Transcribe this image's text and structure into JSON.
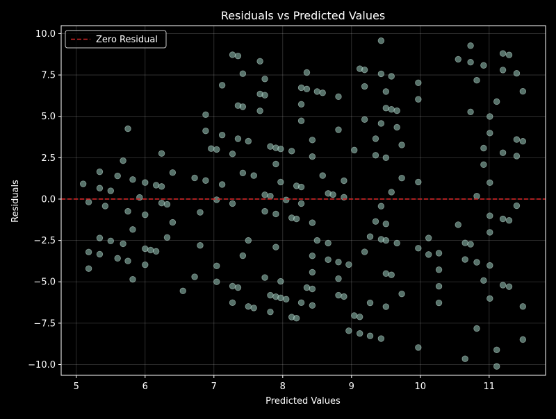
{
  "chart_data": {
    "type": "scatter",
    "title": "Residuals vs Predicted Values",
    "xlabel": "Predicted Values",
    "ylabel": "Residuals",
    "xlim": [
      4.78,
      11.82
    ],
    "ylim": [
      -10.65,
      10.48
    ],
    "xticks": [
      5,
      6,
      7,
      8,
      9,
      10,
      11
    ],
    "yticks": [
      -10.0,
      -7.5,
      -5.0,
      -2.5,
      0.0,
      2.5,
      5.0,
      7.5,
      10.0
    ],
    "ytick_labels": [
      "−10.0",
      "−7.5",
      "−5.0",
      "−2.5",
      "0.0",
      "2.5",
      "5.0",
      "7.5",
      "10.0"
    ],
    "grid": true,
    "legend": {
      "placement": "top-left",
      "entries": [
        "Zero Residual"
      ]
    },
    "reference_line": {
      "y": 0,
      "style": "dashed",
      "color": "#d62728",
      "label": "Zero Residual"
    },
    "point_color": "#8fbcaf",
    "points": [
      [
        5.1,
        0.92
      ],
      [
        5.18,
        -0.18
      ],
      [
        5.18,
        -3.2
      ],
      [
        5.18,
        -4.2
      ],
      [
        5.34,
        1.65
      ],
      [
        5.34,
        0.66
      ],
      [
        5.34,
        -2.35
      ],
      [
        5.34,
        -3.33
      ],
      [
        5.42,
        -0.42
      ],
      [
        5.5,
        0.5
      ],
      [
        5.5,
        -2.53
      ],
      [
        5.6,
        1.4
      ],
      [
        5.6,
        -3.58
      ],
      [
        5.68,
        2.32
      ],
      [
        5.68,
        -2.7
      ],
      [
        5.75,
        4.25
      ],
      [
        5.75,
        -0.74
      ],
      [
        5.75,
        -3.74
      ],
      [
        5.82,
        1.18
      ],
      [
        5.82,
        -1.84
      ],
      [
        5.82,
        -4.85
      ],
      [
        5.92,
        0.1
      ],
      [
        6.0,
        1.0
      ],
      [
        6.0,
        -0.95
      ],
      [
        6.0,
        -3.0
      ],
      [
        6.0,
        -3.97
      ],
      [
        6.08,
        -3.08
      ],
      [
        6.16,
        0.84
      ],
      [
        6.16,
        -3.16
      ],
      [
        6.24,
        2.76
      ],
      [
        6.24,
        0.76
      ],
      [
        6.24,
        -0.24
      ],
      [
        6.32,
        -0.32
      ],
      [
        6.32,
        -2.32
      ],
      [
        6.4,
        1.6
      ],
      [
        6.4,
        -1.41
      ],
      [
        6.55,
        -5.55
      ],
      [
        6.72,
        1.28
      ],
      [
        6.72,
        -4.7
      ],
      [
        6.8,
        -0.8
      ],
      [
        6.8,
        -2.8
      ],
      [
        6.88,
        5.1
      ],
      [
        6.88,
        4.12
      ],
      [
        6.88,
        1.12
      ],
      [
        6.96,
        3.05
      ],
      [
        7.04,
        3.0
      ],
      [
        7.04,
        -0.04
      ],
      [
        7.04,
        -4.04
      ],
      [
        7.04,
        -5.0
      ],
      [
        7.12,
        6.88
      ],
      [
        7.12,
        3.87
      ],
      [
        7.12,
        0.88
      ],
      [
        7.27,
        8.72
      ],
      [
        7.27,
        2.73
      ],
      [
        7.27,
        -0.27
      ],
      [
        7.27,
        -5.26
      ],
      [
        7.27,
        -6.26
      ],
      [
        7.35,
        8.65
      ],
      [
        7.35,
        5.65
      ],
      [
        7.35,
        3.65
      ],
      [
        7.35,
        -5.35
      ],
      [
        7.42,
        7.58
      ],
      [
        7.42,
        5.58
      ],
      [
        7.42,
        1.58
      ],
      [
        7.42,
        -3.42
      ],
      [
        7.5,
        3.5
      ],
      [
        7.5,
        -2.5
      ],
      [
        7.5,
        -6.49
      ],
      [
        7.58,
        1.42
      ],
      [
        7.58,
        -6.58
      ],
      [
        7.67,
        8.33
      ],
      [
        7.67,
        6.35
      ],
      [
        7.67,
        5.33
      ],
      [
        7.74,
        7.26
      ],
      [
        7.74,
        6.28
      ],
      [
        7.74,
        0.26
      ],
      [
        7.74,
        -0.74
      ],
      [
        7.74,
        -4.74
      ],
      [
        7.82,
        3.18
      ],
      [
        7.82,
        0.18
      ],
      [
        7.82,
        -5.81
      ],
      [
        7.82,
        -6.82
      ],
      [
        7.9,
        3.1
      ],
      [
        7.9,
        2.12
      ],
      [
        7.9,
        -0.9
      ],
      [
        7.9,
        -2.9
      ],
      [
        7.9,
        -5.9
      ],
      [
        7.97,
        3.03
      ],
      [
        7.97,
        1.03
      ],
      [
        7.97,
        -4.97
      ],
      [
        7.97,
        -5.97
      ],
      [
        8.05,
        -0.05
      ],
      [
        8.05,
        -6.05
      ],
      [
        8.13,
        2.9
      ],
      [
        8.13,
        -1.13
      ],
      [
        8.13,
        -7.13
      ],
      [
        8.2,
        0.8
      ],
      [
        8.2,
        -1.2
      ],
      [
        8.2,
        -7.2
      ],
      [
        8.27,
        6.73
      ],
      [
        8.27,
        5.73
      ],
      [
        8.27,
        4.73
      ],
      [
        8.27,
        0.73
      ],
      [
        8.27,
        -0.27
      ],
      [
        8.27,
        -6.26
      ],
      [
        8.35,
        7.65
      ],
      [
        8.35,
        6.65
      ],
      [
        8.35,
        -5.35
      ],
      [
        8.43,
        3.57
      ],
      [
        8.43,
        2.57
      ],
      [
        8.43,
        -1.43
      ],
      [
        8.43,
        -3.43
      ],
      [
        8.43,
        -4.42
      ],
      [
        8.43,
        -5.43
      ],
      [
        8.43,
        -6.43
      ],
      [
        8.5,
        6.5
      ],
      [
        8.5,
        -2.5
      ],
      [
        8.58,
        6.42
      ],
      [
        8.58,
        1.42
      ],
      [
        8.66,
        0.34
      ],
      [
        8.66,
        -2.66
      ],
      [
        8.66,
        -3.66
      ],
      [
        8.73,
        0.27
      ],
      [
        8.81,
        6.19
      ],
      [
        8.81,
        4.19
      ],
      [
        8.81,
        -3.81
      ],
      [
        8.81,
        -4.81
      ],
      [
        8.81,
        -5.81
      ],
      [
        8.89,
        1.11
      ],
      [
        8.89,
        0.11
      ],
      [
        8.89,
        -5.89
      ],
      [
        8.96,
        -3.96
      ],
      [
        8.96,
        -7.96
      ],
      [
        9.04,
        2.96
      ],
      [
        9.04,
        -7.04
      ],
      [
        9.12,
        7.88
      ],
      [
        9.12,
        -7.12
      ],
      [
        9.12,
        -8.12
      ],
      [
        9.19,
        7.81
      ],
      [
        9.19,
        6.81
      ],
      [
        9.19,
        4.81
      ],
      [
        9.19,
        -3.19
      ],
      [
        9.27,
        -2.27
      ],
      [
        9.27,
        -6.27
      ],
      [
        9.27,
        -8.27
      ],
      [
        9.35,
        3.65
      ],
      [
        9.35,
        2.65
      ],
      [
        9.35,
        -1.35
      ],
      [
        9.43,
        9.57
      ],
      [
        9.43,
        7.57
      ],
      [
        9.43,
        4.57
      ],
      [
        9.43,
        -0.43
      ],
      [
        9.43,
        -2.43
      ],
      [
        9.43,
        -8.43
      ],
      [
        9.5,
        6.5
      ],
      [
        9.5,
        5.5
      ],
      [
        9.5,
        2.5
      ],
      [
        9.5,
        -1.5
      ],
      [
        9.5,
        -2.5
      ],
      [
        9.5,
        -4.5
      ],
      [
        9.5,
        -6.5
      ],
      [
        9.58,
        7.42
      ],
      [
        9.58,
        5.42
      ],
      [
        9.58,
        0.42
      ],
      [
        9.58,
        -4.58
      ],
      [
        9.66,
        5.34
      ],
      [
        9.66,
        4.34
      ],
      [
        9.66,
        -2.66
      ],
      [
        9.73,
        3.27
      ],
      [
        9.73,
        1.27
      ],
      [
        9.73,
        -5.73
      ],
      [
        9.97,
        7.03
      ],
      [
        9.97,
        6.03
      ],
      [
        9.97,
        1.03
      ],
      [
        9.97,
        -2.97
      ],
      [
        9.97,
        -8.97
      ],
      [
        10.12,
        -2.35
      ],
      [
        10.12,
        -3.35
      ],
      [
        10.27,
        -3.27
      ],
      [
        10.27,
        -4.27
      ],
      [
        10.27,
        -5.27
      ],
      [
        10.27,
        -6.27
      ],
      [
        10.55,
        8.45
      ],
      [
        10.55,
        -1.55
      ],
      [
        10.65,
        -2.65
      ],
      [
        10.65,
        -3.65
      ],
      [
        10.65,
        -9.65
      ],
      [
        10.73,
        9.27
      ],
      [
        10.73,
        8.27
      ],
      [
        10.73,
        5.27
      ],
      [
        10.73,
        -2.73
      ],
      [
        10.82,
        7.18
      ],
      [
        10.82,
        0.18
      ],
      [
        10.82,
        -3.82
      ],
      [
        10.82,
        -7.82
      ],
      [
        10.92,
        8.08
      ],
      [
        10.92,
        3.08
      ],
      [
        10.92,
        2.08
      ],
      [
        10.92,
        -4.92
      ],
      [
        11.01,
        4.99
      ],
      [
        11.01,
        3.99
      ],
      [
        11.01,
        0.99
      ],
      [
        11.01,
        -1.01
      ],
      [
        11.01,
        -2.01
      ],
      [
        11.01,
        -4.01
      ],
      [
        11.01,
        -6.01
      ],
      [
        11.11,
        5.89
      ],
      [
        11.11,
        -9.11
      ],
      [
        11.11,
        -10.11
      ],
      [
        11.2,
        8.8
      ],
      [
        11.2,
        7.8
      ],
      [
        11.2,
        2.8
      ],
      [
        11.2,
        -1.2
      ],
      [
        11.2,
        -5.2
      ],
      [
        11.29,
        8.71
      ],
      [
        11.29,
        -1.29
      ],
      [
        11.29,
        -5.29
      ],
      [
        11.4,
        7.6
      ],
      [
        11.4,
        3.6
      ],
      [
        11.4,
        2.6
      ],
      [
        11.4,
        -0.4
      ],
      [
        11.49,
        6.51
      ],
      [
        11.49,
        3.49
      ],
      [
        11.49,
        -6.49
      ],
      [
        11.49,
        -8.49
      ]
    ]
  }
}
